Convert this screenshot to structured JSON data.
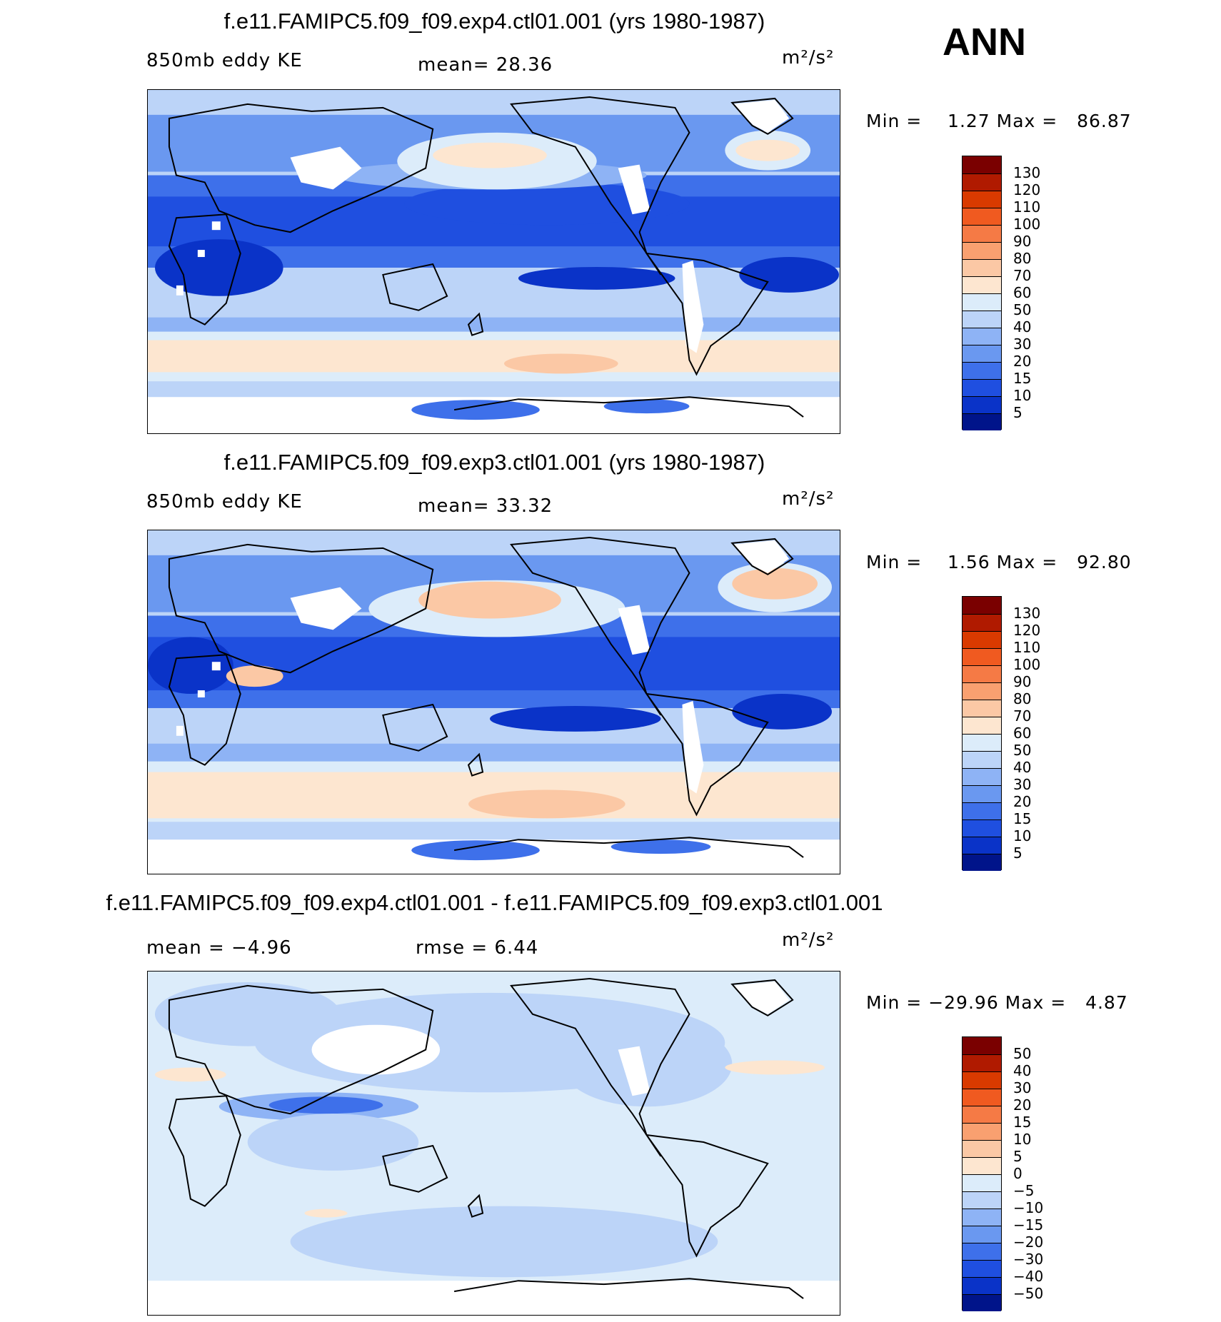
{
  "season": "ANN",
  "panels": [
    {
      "title": "f.e11.FAMIPC5.f09_f09.exp4.ctl01.001 (yrs 1980-1987)",
      "left_label": "850mb eddy KE",
      "center_label": "mean=  28.36",
      "units": "m²/s²",
      "minmax": "Min =    1.27 Max =   86.87",
      "colorbar": {
        "levels": [
          "130",
          "120",
          "110",
          "100",
          "90",
          "80",
          "70",
          "60",
          "50",
          "40",
          "30",
          "20",
          "15",
          "10",
          "5"
        ],
        "colors": [
          "#7a0000",
          "#b01a00",
          "#d93a00",
          "#f05a20",
          "#f57a45",
          "#f9a070",
          "#fbc8a5",
          "#fde6d0",
          "#dcecfa",
          "#bcd4f8",
          "#8eb3f5",
          "#6a98f0",
          "#3e70ea",
          "#1f4fe0",
          "#0a33c8",
          "#00148a"
        ]
      }
    },
    {
      "title": "f.e11.FAMIPC5.f09_f09.exp3.ctl01.001 (yrs 1980-1987)",
      "left_label": "850mb eddy KE",
      "center_label": "mean=  33.32",
      "units": "m²/s²",
      "minmax": "Min =    1.56 Max =   92.80",
      "colorbar": {
        "levels": [
          "130",
          "120",
          "110",
          "100",
          "90",
          "80",
          "70",
          "60",
          "50",
          "40",
          "30",
          "20",
          "15",
          "10",
          "5"
        ],
        "colors": [
          "#7a0000",
          "#b01a00",
          "#d93a00",
          "#f05a20",
          "#f57a45",
          "#f9a070",
          "#fbc8a5",
          "#fde6d0",
          "#dcecfa",
          "#bcd4f8",
          "#8eb3f5",
          "#6a98f0",
          "#3e70ea",
          "#1f4fe0",
          "#0a33c8",
          "#00148a"
        ]
      }
    },
    {
      "title": "f.e11.FAMIPC5.f09_f09.exp4.ctl01.001 - f.e11.FAMIPC5.f09_f09.exp3.ctl01.001",
      "left_label": "mean =  −4.96",
      "center_label": "rmse =   6.44",
      "units": "m²/s²",
      "minmax": "Min = −29.96 Max =   4.87",
      "colorbar": {
        "levels": [
          "50",
          "40",
          "30",
          "20",
          "15",
          "10",
          "5",
          "0",
          "−5",
          "−10",
          "−15",
          "−20",
          "−30",
          "−40",
          "−50"
        ],
        "colors": [
          "#7a0000",
          "#b01a00",
          "#d93a00",
          "#f05a20",
          "#f57a45",
          "#f9a070",
          "#fbc8a5",
          "#fde6d0",
          "#dcecfa",
          "#bcd4f8",
          "#8eb3f5",
          "#6a98f0",
          "#3e70ea",
          "#1f4fe0",
          "#0a33c8",
          "#00148a"
        ]
      }
    }
  ]
}
